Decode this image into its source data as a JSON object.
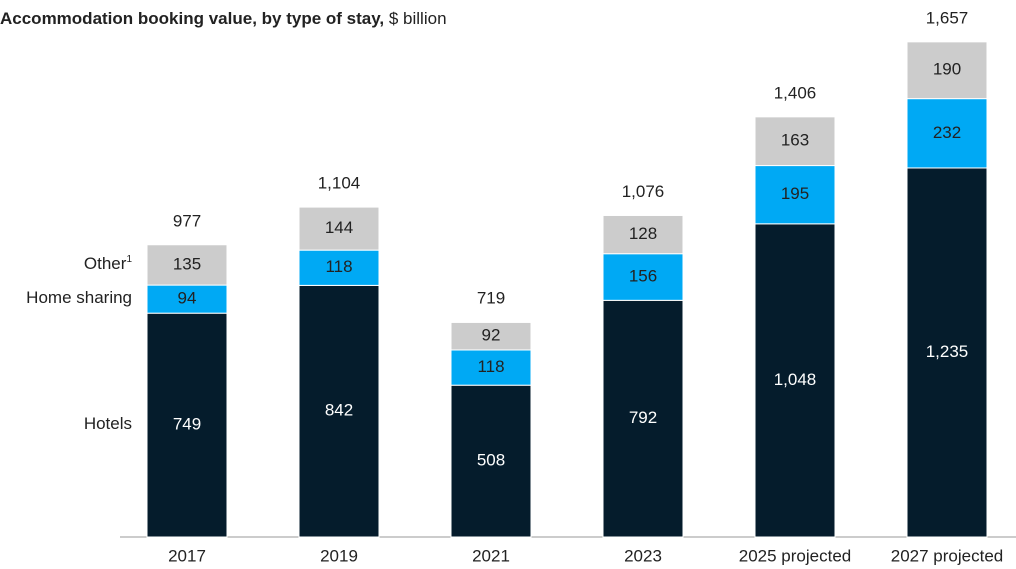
{
  "chart_data": {
    "type": "stacked_bar",
    "title": "Accommodation booking value, by type of stay,",
    "unit": "$ billion",
    "categories": [
      "2017",
      "2019",
      "2021",
      "2023",
      "2025 projected",
      "2027 projected"
    ],
    "series": [
      {
        "name": "Hotels",
        "color": "#051c2c",
        "values": [
          749,
          842,
          508,
          792,
          1048,
          1235
        ],
        "value_labels": [
          "749",
          "842",
          "508",
          "792",
          "1,048",
          "1,235"
        ]
      },
      {
        "name": "Home sharing",
        "color": "#00a9f4",
        "values": [
          94,
          118,
          118,
          156,
          195,
          232
        ]
      },
      {
        "name": "Other",
        "name_footnote": "1",
        "color": "#cccccc",
        "values": [
          135,
          144,
          92,
          128,
          163,
          190
        ]
      }
    ],
    "totals": [
      977,
      1104,
      719,
      1076,
      1406,
      1657
    ],
    "total_labels": [
      "977",
      "1,104",
      "719",
      "1,076",
      "1,406",
      "1,657"
    ],
    "ylim": [
      0,
      1700
    ]
  }
}
